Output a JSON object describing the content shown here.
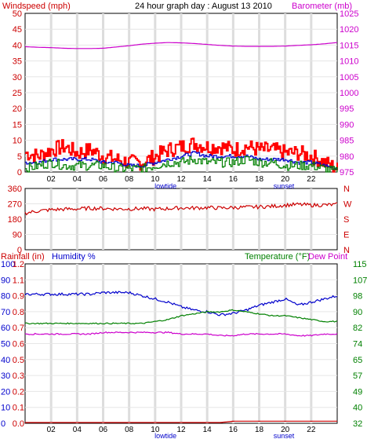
{
  "chart_data": [
    {
      "type": "line",
      "title": "24 hour graph day : August 13 2010",
      "ylabel_left": "Windspeed (mph)",
      "ylabel_right": "Barometer (mb)",
      "x_ticks": [
        "02",
        "04",
        "06",
        "08",
        "10",
        "12",
        "14",
        "16",
        "18",
        "20",
        "22"
      ],
      "x_markers": [
        "lowtide",
        "sunset"
      ],
      "y_left_ticks": [
        "50",
        "45",
        "40",
        "35",
        "30",
        "25",
        "20",
        "15",
        "10",
        "5",
        "0"
      ],
      "y_right_ticks": [
        "1025",
        "1020",
        "1015",
        "1010",
        "1005",
        "1000",
        "995",
        "990",
        "985",
        "980",
        "975"
      ],
      "ylim_left": [
        0,
        50
      ],
      "ylim_right": [
        975,
        1025
      ],
      "x_range_hours": [
        0,
        24
      ],
      "series": [
        {
          "axis": "right",
          "color": "#cc00cc",
          "x": [
            0,
            1,
            2,
            3,
            4,
            5,
            6,
            7,
            8,
            9,
            10,
            11,
            12,
            13,
            14,
            15,
            16,
            17,
            18,
            19,
            20,
            21,
            22,
            23,
            24
          ],
          "values": [
            1014.5,
            1014.3,
            1014.2,
            1014.0,
            1013.9,
            1013.9,
            1014.0,
            1014.4,
            1014.8,
            1015.3,
            1015.6,
            1015.8,
            1015.7,
            1015.5,
            1015.2,
            1014.9,
            1014.7,
            1014.6,
            1014.6,
            1014.6,
            1014.7,
            1014.9,
            1015.1,
            1015.4,
            1015.8
          ]
        },
        {
          "axis": "left",
          "color": "#ff0000",
          "x": [
            0,
            1,
            2,
            3,
            4,
            5,
            6,
            7,
            8,
            9,
            10,
            11,
            12,
            13,
            14,
            15,
            16,
            17,
            18,
            19,
            20,
            21,
            22,
            23,
            24
          ],
          "values": [
            6,
            5,
            7,
            8,
            6,
            7,
            5,
            4,
            3,
            3,
            5,
            7,
            8,
            9,
            8,
            8,
            7,
            8,
            7,
            7,
            6,
            6,
            5,
            3,
            1
          ]
        },
        {
          "axis": "left",
          "color": "#0000cc",
          "x": [
            0,
            1,
            2,
            3,
            4,
            5,
            6,
            7,
            8,
            9,
            10,
            11,
            12,
            13,
            14,
            15,
            16,
            17,
            18,
            19,
            20,
            21,
            22,
            23,
            24
          ],
          "values": [
            3,
            3,
            4,
            4,
            4,
            4,
            3,
            3,
            2,
            2,
            3,
            4,
            5,
            6,
            5,
            5,
            5,
            5,
            4,
            4,
            4,
            3,
            3,
            2,
            1
          ]
        },
        {
          "axis": "left",
          "color": "#008000",
          "x": [
            0,
            1,
            2,
            3,
            4,
            5,
            6,
            7,
            8,
            9,
            10,
            11,
            12,
            13,
            14,
            15,
            16,
            17,
            18,
            19,
            20,
            21,
            22,
            23,
            24
          ],
          "values": [
            1,
            2,
            3,
            2,
            2,
            2,
            2,
            1,
            1,
            1,
            2,
            3,
            3,
            4,
            3,
            3,
            3,
            4,
            3,
            3,
            2,
            2,
            2,
            1,
            0
          ]
        }
      ]
    },
    {
      "type": "line",
      "y_left_ticks": [
        "360",
        "270",
        "180",
        "90",
        "0"
      ],
      "y_right_ticks": [
        "N",
        "W",
        "S",
        "E",
        "N"
      ],
      "ylim": [
        0,
        360
      ],
      "x_range_hours": [
        0,
        24
      ],
      "series": [
        {
          "color": "#cc0000",
          "x": [
            0,
            1,
            2,
            3,
            4,
            5,
            6,
            7,
            8,
            9,
            10,
            11,
            12,
            13,
            14,
            15,
            16,
            17,
            18,
            19,
            20,
            21,
            22,
            23,
            24
          ],
          "values": [
            215,
            228,
            235,
            238,
            240,
            244,
            243,
            240,
            240,
            242,
            238,
            242,
            246,
            245,
            248,
            245,
            248,
            250,
            252,
            255,
            262,
            266,
            262,
            263,
            265
          ]
        }
      ]
    },
    {
      "type": "line",
      "ylabel_left_a": "Rainfall (in)",
      "ylabel_left_b": "Humidity %",
      "ylabel_right_a": "Temperature (°F)",
      "ylabel_right_b": "Dew Point",
      "x_ticks": [
        "02",
        "04",
        "06",
        "08",
        "10",
        "12",
        "14",
        "16",
        "18",
        "20",
        "22"
      ],
      "x_markers": [
        "lowtide",
        "sunset"
      ],
      "y_humidity_ticks": [
        "100",
        "90",
        "80",
        "70",
        "60",
        "50",
        "40",
        "30",
        "20",
        "10",
        "0"
      ],
      "y_rain_ticks": [
        "1.2",
        "1.1",
        "0.9",
        "0.8",
        "0.7",
        "0.6",
        "0.5",
        "0.3",
        "0.2",
        "0.1",
        "0.0"
      ],
      "y_temp_ticks": [
        "115",
        "107",
        "98",
        "90",
        "82",
        "74",
        "65",
        "57",
        "49",
        "40",
        "32"
      ],
      "ylim_humidity": [
        0,
        100
      ],
      "ylim_temp": [
        32,
        115
      ],
      "x_range_hours": [
        0,
        24
      ],
      "series": [
        {
          "axis": "humidity",
          "color": "#0000cc",
          "x": [
            0,
            1,
            2,
            3,
            4,
            5,
            6,
            7,
            8,
            9,
            10,
            11,
            12,
            13,
            14,
            15,
            16,
            17,
            18,
            19,
            20,
            21,
            22,
            23,
            24
          ],
          "values": [
            81,
            81,
            81,
            81,
            81,
            81,
            82,
            82,
            82,
            80,
            78,
            76,
            73,
            71,
            70,
            68,
            69,
            71,
            74,
            76,
            78,
            74,
            76,
            78,
            80
          ]
        },
        {
          "axis": "humidity",
          "color": "#cc00cc",
          "x": [
            0,
            1,
            2,
            3,
            4,
            5,
            6,
            7,
            8,
            9,
            10,
            11,
            12,
            13,
            14,
            15,
            16,
            17,
            18,
            19,
            20,
            21,
            22,
            23,
            24
          ],
          "values": [
            56,
            56,
            56,
            56,
            56,
            56,
            57,
            57,
            57,
            57,
            57,
            57,
            56,
            56,
            56,
            55,
            55,
            56,
            56,
            56,
            56,
            55,
            55,
            56,
            56
          ]
        },
        {
          "axis": "temp",
          "color": "#008000",
          "x": [
            0,
            1,
            2,
            3,
            4,
            5,
            6,
            7,
            8,
            9,
            10,
            11,
            12,
            13,
            14,
            15,
            16,
            17,
            18,
            19,
            20,
            21,
            22,
            23,
            24
          ],
          "values": [
            84,
            84,
            84,
            84,
            84,
            84,
            84,
            84,
            84,
            84,
            85,
            86,
            88,
            89,
            90,
            90,
            91,
            90,
            89,
            88,
            88,
            87,
            86,
            85,
            85
          ]
        },
        {
          "axis": "rain",
          "color": "#cc0000",
          "x": [
            0,
            1,
            2,
            3,
            4,
            5,
            6,
            7,
            8,
            9,
            10,
            11,
            12,
            13,
            14,
            15,
            16,
            17,
            18,
            19,
            20,
            21,
            22,
            23,
            24
          ],
          "values": [
            0,
            0,
            0,
            0,
            0,
            0,
            0,
            0,
            0,
            0,
            0,
            0,
            0,
            0,
            0,
            0,
            0.01,
            0.01,
            0.01,
            0.01,
            0.01,
            0.01,
            0.01,
            0.01,
            0.01
          ]
        }
      ]
    }
  ]
}
